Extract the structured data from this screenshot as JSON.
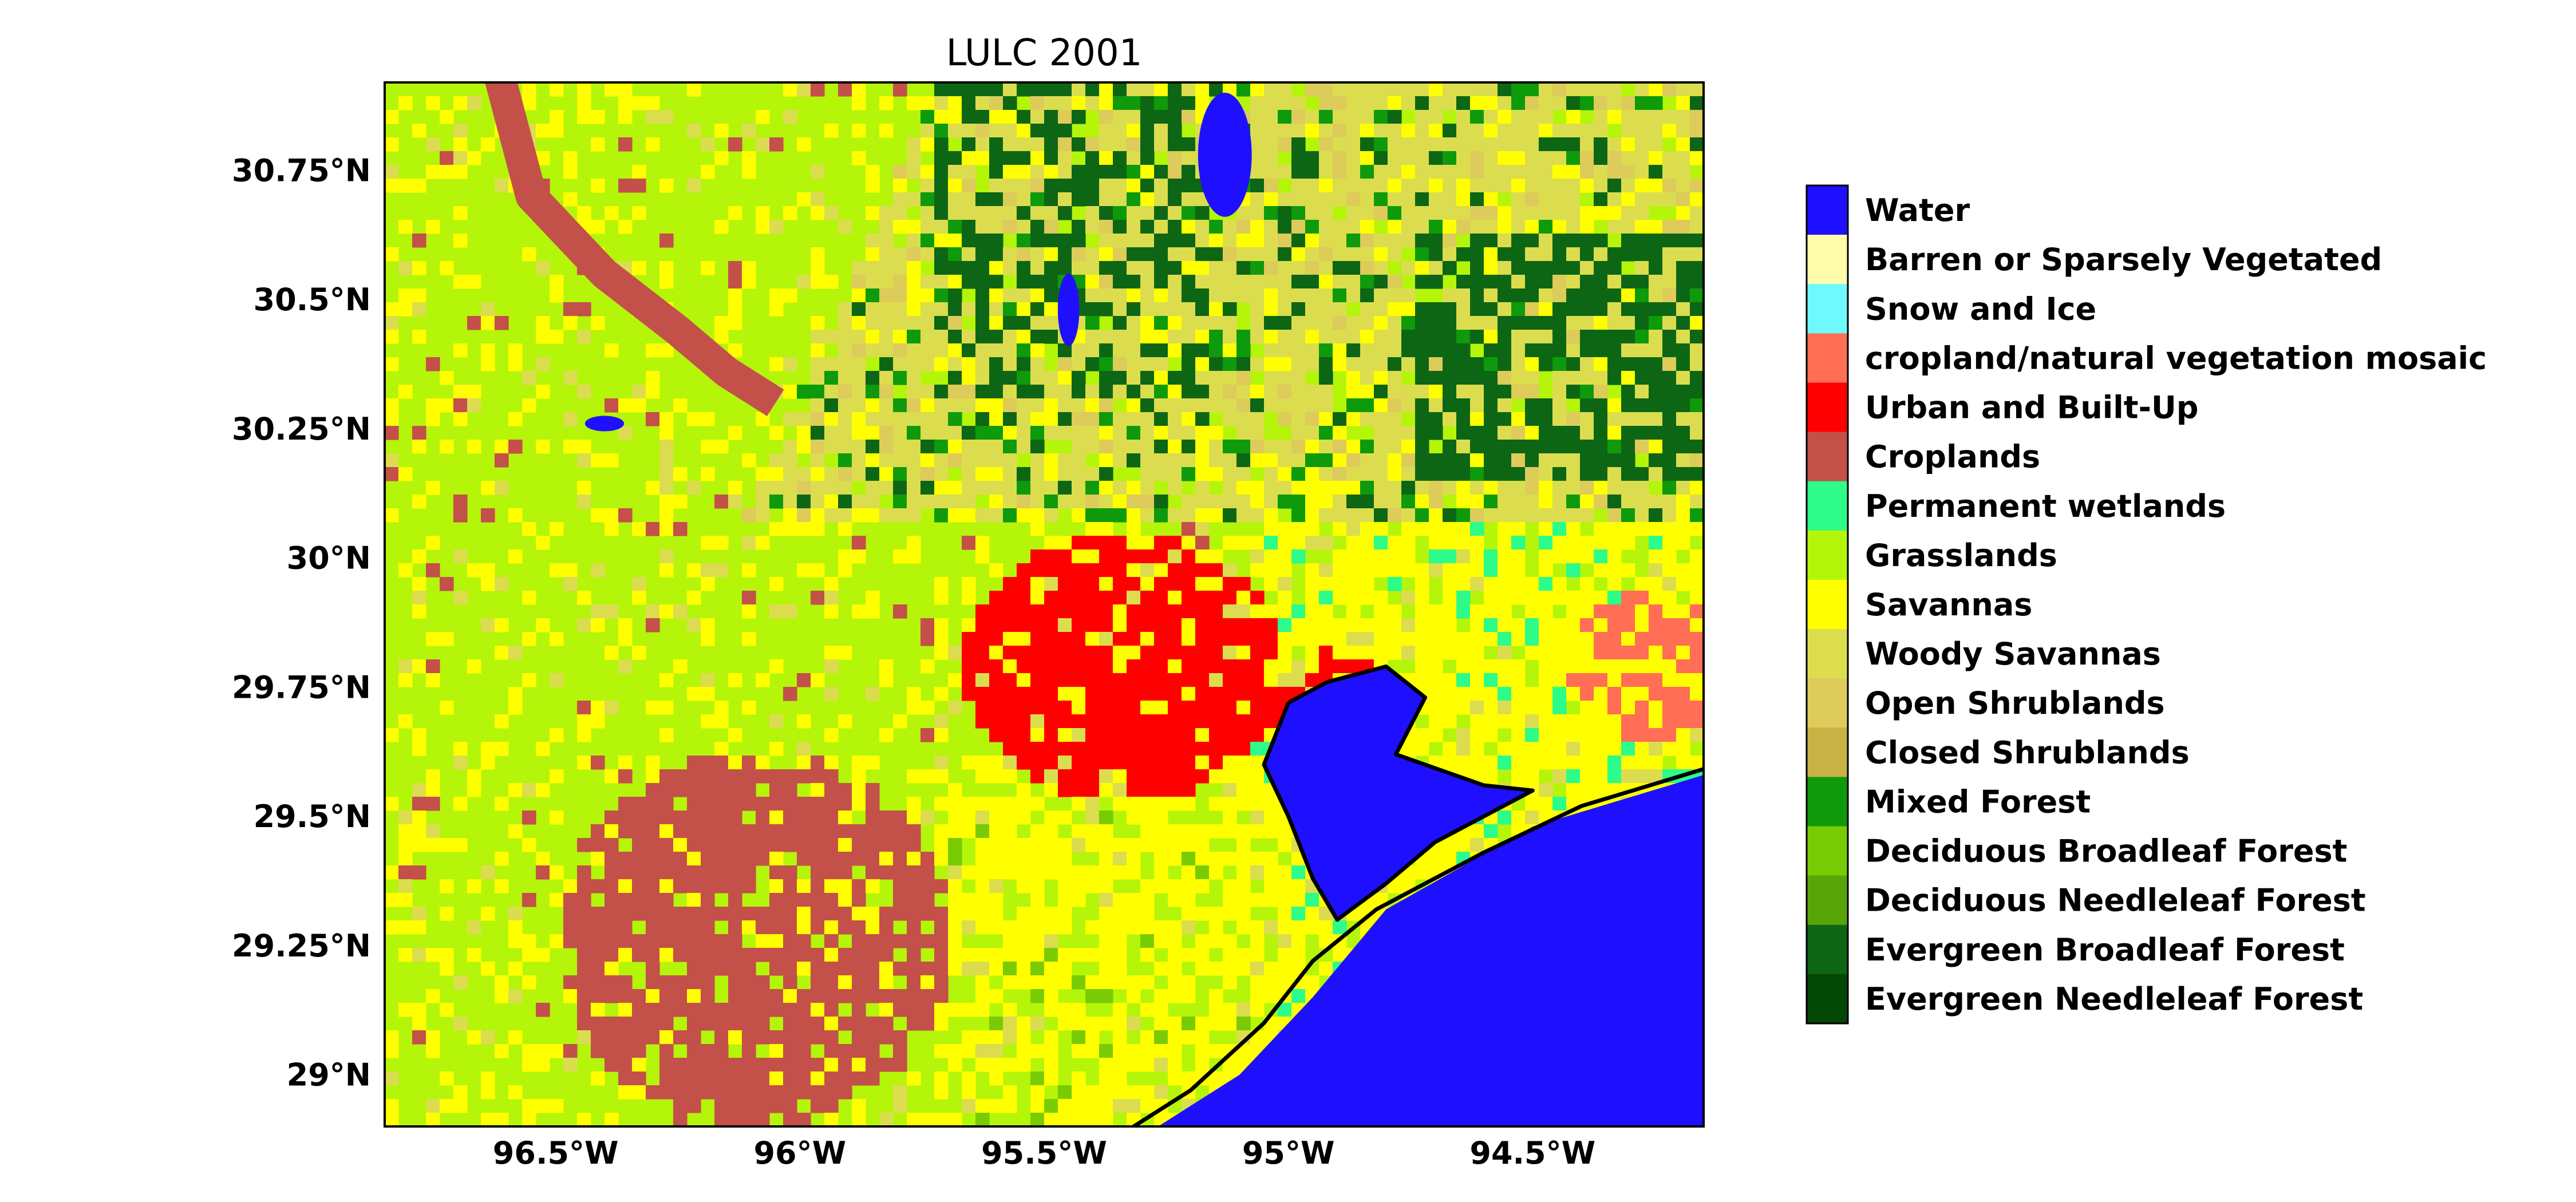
{
  "title": "LULC 2001",
  "map": {
    "extent": {
      "lon_min": -96.85,
      "lon_max": -94.15,
      "lat_min": 28.9,
      "lat_max": 30.92
    },
    "lat_ticks": [
      {
        "value": 30.75,
        "label": "30.75°N"
      },
      {
        "value": 30.5,
        "label": "30.5°N"
      },
      {
        "value": 30.25,
        "label": "30.25°N"
      },
      {
        "value": 30.0,
        "label": "30°N"
      },
      {
        "value": 29.75,
        "label": "29.75°N"
      },
      {
        "value": 29.5,
        "label": "29.5°N"
      },
      {
        "value": 29.25,
        "label": "29.25°N"
      },
      {
        "value": 29.0,
        "label": "29°N"
      }
    ],
    "lon_ticks": [
      {
        "value": -96.5,
        "label": "96.5°W"
      },
      {
        "value": -96.0,
        "label": "96°W"
      },
      {
        "value": -95.5,
        "label": "95.5°W"
      },
      {
        "value": -95.0,
        "label": "95°W"
      },
      {
        "value": -94.5,
        "label": "94.5°W"
      }
    ],
    "frame_color": "#000000",
    "coastline_color": "#000000"
  },
  "legend": {
    "placement": "right",
    "classes": [
      {
        "label": "Water",
        "color": "#1e10ff"
      },
      {
        "label": "Barren or Sparsely Vegetated",
        "color": "#fffcaa"
      },
      {
        "label": "Snow and Ice",
        "color": "#6ef9ff"
      },
      {
        "label": "cropland/natural vegetation mosaic",
        "color": "#ff6e55"
      },
      {
        "label": "Urban and Built-Up",
        "color": "#ff0000"
      },
      {
        "label": "Croplands",
        "color": "#c4504a"
      },
      {
        "label": "Permanent wetlands",
        "color": "#2dfb8a"
      },
      {
        "label": "Grasslands",
        "color": "#b4f50a"
      },
      {
        "label": "Savannas",
        "color": "#ffff00"
      },
      {
        "label": "Woody Savannas",
        "color": "#dbdd4f"
      },
      {
        "label": "Open Shrublands",
        "color": "#ddcb5a"
      },
      {
        "label": "Closed Shrublands",
        "color": "#c9b246"
      },
      {
        "label": "Mixed Forest",
        "color": "#0e9a0b"
      },
      {
        "label": "Deciduous Broadleaf Forest",
        "color": "#79cb06"
      },
      {
        "label": "Deciduous Needleleaf Forest",
        "color": "#58a50a"
      },
      {
        "label": "Evergreen Broadleaf Forest",
        "color": "#0d6614"
      },
      {
        "label": "Evergreen Needleleaf Forest",
        "color": "#034705"
      }
    ]
  }
}
